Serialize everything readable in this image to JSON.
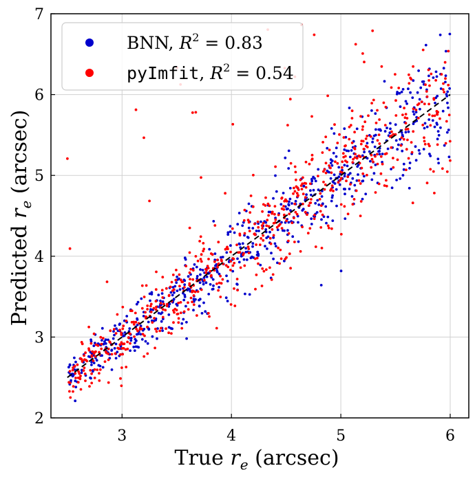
{
  "chart_data": {
    "type": "scatter",
    "title": "",
    "xlabel": "True r_e (arcsec)",
    "ylabel": "Predicted r_e (arcsec)",
    "xlabel_prefix": "True",
    "xlabel_var": "r",
    "xlabel_sub": "e",
    "xlabel_unit": "(arcsec)",
    "ylabel_prefix": "Predicted",
    "ylabel_var": "r",
    "ylabel_sub": "e",
    "ylabel_unit": "(arcsec)",
    "xlim": [
      2.35,
      6.17
    ],
    "ylim": [
      2,
      7
    ],
    "xticks": [
      3,
      4,
      5,
      6
    ],
    "yticks": [
      2,
      3,
      4,
      5,
      6,
      7
    ],
    "xtick_labels": [
      "3",
      "4",
      "5",
      "6"
    ],
    "ytick_labels": [
      "2",
      "3",
      "4",
      "5",
      "6",
      "7"
    ],
    "grid": true,
    "legend_position": "top-left",
    "reference_line": {
      "x": [
        2.5,
        6.0
      ],
      "y": [
        2.5,
        6.0
      ],
      "style": "dashed",
      "color": "#000000"
    },
    "series": [
      {
        "name": "BNN",
        "r2_label": "R",
        "r2_exp": "2",
        "r2_value": "= 0.83",
        "color": "#0000cc",
        "n_points": 700,
        "scatter_sd": 0.36
      },
      {
        "name": "pyImfit",
        "r2_label": "R",
        "r2_exp": "2",
        "r2_value": "= 0.54",
        "color": "#ff0000",
        "n_points": 700,
        "scatter_sd": 0.45
      }
    ],
    "points_note": "illustrative scatter of x in [2.5, 6.0] around y = x"
  }
}
